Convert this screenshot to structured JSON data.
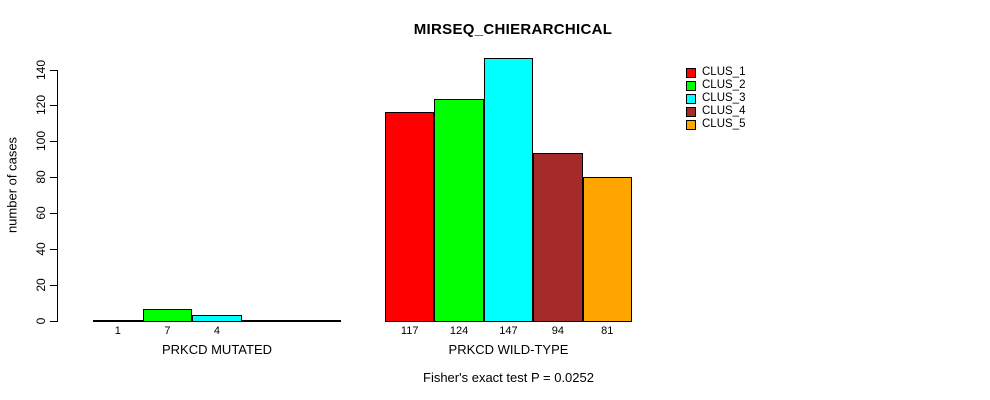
{
  "chart_data": {
    "type": "bar",
    "title": "MIRSEQ_CHIERARCHICAL",
    "ylabel": "number of cases",
    "xlabel": "",
    "ylim": [
      0,
      147
    ],
    "yticks": [
      0,
      20,
      40,
      60,
      80,
      100,
      120,
      140
    ],
    "grid": false,
    "legend_position": "top-right",
    "legend": [
      {
        "name": "CLUS_1",
        "color": "#FF0000"
      },
      {
        "name": "CLUS_2",
        "color": "#00FF00"
      },
      {
        "name": "CLUS_3",
        "color": "#00FFFF"
      },
      {
        "name": "CLUS_4",
        "color": "#A52A2A"
      },
      {
        "name": "CLUS_5",
        "color": "#FFA500"
      }
    ],
    "groups": [
      {
        "label": "PRKCD MUTATED",
        "values": [
          1,
          7,
          4,
          0,
          0
        ],
        "bar_labels": [
          "1",
          "7",
          "4",
          "",
          ""
        ]
      },
      {
        "label": "PRKCD WILD-TYPE",
        "values": [
          117,
          124,
          147,
          94,
          81
        ],
        "bar_labels": [
          "117",
          "124",
          "147",
          "94",
          "81"
        ]
      }
    ],
    "annotation": "Fisher's exact test P = 0.0252",
    "colors": {
      "bar_border": "#000000",
      "background": "#FFFFFF",
      "text": "#000000"
    }
  }
}
